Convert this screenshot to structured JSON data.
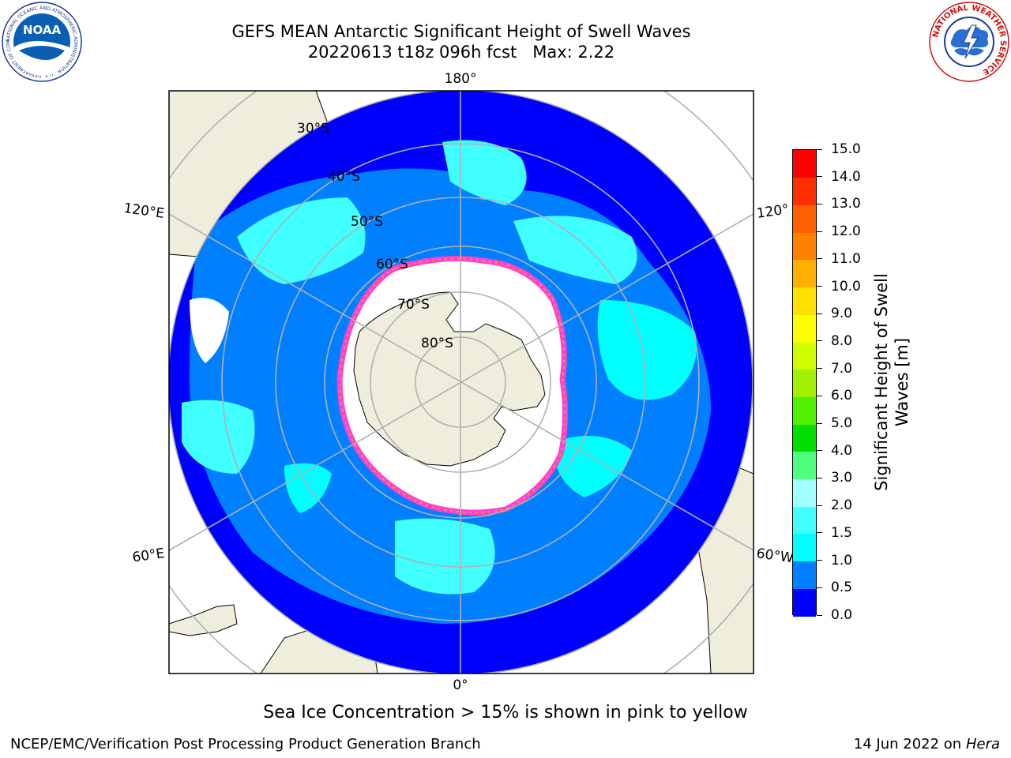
{
  "header": {
    "title_line1": "GEFS MEAN Antarctic Significant Height of Swell Waves",
    "title_line2": "20220613 t18z 096h fcst   Max: 2.22"
  },
  "logos": {
    "noaa_text": "NOAA",
    "noaa_ring_text": "NATIONAL OCEANIC AND ATMOSPHERIC ADMINISTRATION · U.S. DEPARTMENT OF COMMERCE ·",
    "nws_ring_text": "NATIONAL WEATHER SERVICE"
  },
  "map": {
    "projection": "south-polar-stereographic",
    "longitude_labels": {
      "top": "180°",
      "bottom": "0°",
      "left_upper": "120°E",
      "left_lower": "60°E",
      "right_upper": "120°",
      "right_lower": "60°W"
    },
    "latitude_labels": [
      "30°S",
      "40°S",
      "50°S",
      "60°S",
      "70°S",
      "80°S"
    ]
  },
  "colorbar": {
    "label": "Significant Height of Swell Waves [m]",
    "ticks": [
      "0.0",
      "0.5",
      "1.0",
      "1.5",
      "2.0",
      "3.0",
      "4.0",
      "5.0",
      "6.0",
      "7.0",
      "8.0",
      "9.0",
      "10.0",
      "11.0",
      "12.0",
      "13.0",
      "14.0",
      "15.0"
    ],
    "colors": [
      "#0000ff",
      "#0080ff",
      "#00ffff",
      "#40ffff",
      "#a0ffff",
      "#50ff80",
      "#00e000",
      "#50f000",
      "#a0f000",
      "#d0ff00",
      "#ffff00",
      "#ffe000",
      "#ffb000",
      "#ff8000",
      "#ff6000",
      "#ff3000",
      "#ff0000"
    ]
  },
  "footer": {
    "note": "Sea Ice Concentration > 15% is shown in pink to yellow",
    "credit": "NCEP/EMC/Verification Post Processing Product Generation Branch",
    "run_date": "14 Jun 2022 on",
    "host": "Hera"
  }
}
